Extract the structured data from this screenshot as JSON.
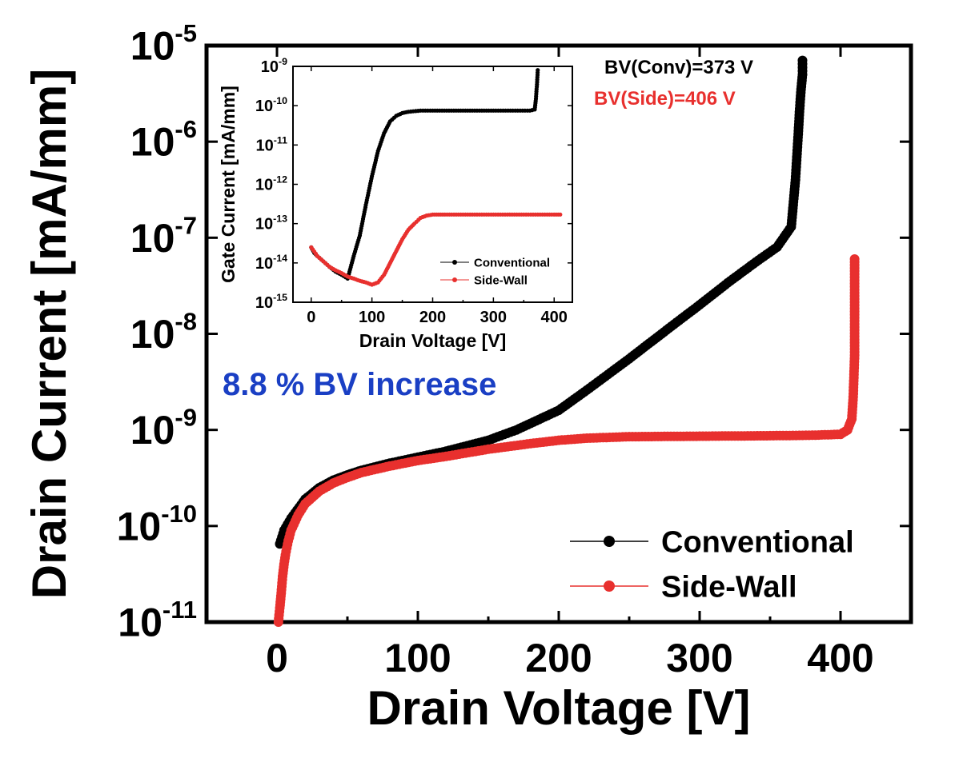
{
  "chart_data": [
    {
      "id": "main",
      "type": "scatter",
      "x_scale": "linear",
      "y_scale": "log",
      "xlabel": "Drain Voltage [V]",
      "ylabel": "Drain Current [mA/mm]",
      "xlim": [
        -50,
        450
      ],
      "ylim": [
        1e-11,
        1e-05
      ],
      "x_ticks": [
        0,
        100,
        200,
        300,
        400
      ],
      "y_tick_exponents": [
        -11,
        -10,
        -9,
        -8,
        -7,
        -6,
        -5
      ],
      "legend_position": "bottom-right",
      "series": [
        {
          "name": "Conventional",
          "color": "#000000",
          "x": [
            2,
            5,
            10,
            20,
            30,
            40,
            50,
            60,
            80,
            100,
            120,
            150,
            170,
            200,
            220,
            250,
            280,
            300,
            320,
            340,
            355,
            365,
            368,
            370,
            371,
            372,
            373,
            373
          ],
          "y": [
            6.5e-11,
            9e-11,
            1.2e-10,
            1.9e-10,
            2.5e-10,
            3e-10,
            3.4e-10,
            3.8e-10,
            4.5e-10,
            5.2e-10,
            6e-10,
            7.8e-10,
            1e-09,
            1.6e-09,
            2.6e-09,
            5.5e-09,
            1.2e-08,
            2e-08,
            3.4e-08,
            5.6e-08,
            8e-08,
            1.3e-07,
            4e-07,
            1.2e-06,
            2.2e-06,
            3.5e-06,
            5e-06,
            7e-06
          ]
        },
        {
          "name": "Side-Wall",
          "color": "#e8302e",
          "x": [
            1,
            2,
            3,
            4,
            5,
            6,
            8,
            10,
            15,
            20,
            30,
            40,
            50,
            60,
            80,
            100,
            120,
            150,
            180,
            200,
            220,
            250,
            300,
            350,
            380,
            400,
            405,
            408,
            409,
            410,
            410,
            410,
            410
          ],
          "y": [
            1e-11,
            1.4e-11,
            2e-11,
            3e-11,
            4e-11,
            5e-11,
            7e-11,
            9e-11,
            1.3e-10,
            1.7e-10,
            2.3e-10,
            2.8e-10,
            3.2e-10,
            3.6e-10,
            4.2e-10,
            4.8e-10,
            5.3e-10,
            6.3e-10,
            7.2e-10,
            7.8e-10,
            8.2e-10,
            8.5e-10,
            8.6e-10,
            8.7e-10,
            8.8e-10,
            9e-10,
            1e-09,
            1.3e-09,
            2.2e-09,
            6e-09,
            2.3e-08,
            4.5e-08,
            6e-08
          ]
        }
      ]
    },
    {
      "id": "inset",
      "type": "line",
      "x_scale": "linear",
      "y_scale": "log",
      "xlabel": "Drain Voltage [V]",
      "ylabel": "Gate Current [mA/mm]",
      "xlim": [
        -30,
        430
      ],
      "ylim": [
        1e-15,
        1e-09
      ],
      "x_ticks": [
        0,
        100,
        200,
        300,
        400
      ],
      "y_tick_exponents": [
        -15,
        -14,
        -13,
        -12,
        -11,
        -10,
        -9
      ],
      "legend_position": "bottom-right",
      "series": [
        {
          "name": "Conventional",
          "color": "#000000",
          "x": [
            0,
            5,
            10,
            20,
            30,
            40,
            50,
            60,
            70,
            80,
            90,
            100,
            110,
            120,
            130,
            140,
            150,
            160,
            180,
            200,
            250,
            300,
            360,
            368,
            370,
            372,
            373
          ],
          "y": [
            2.5e-14,
            1.8e-14,
            1.5e-14,
            1.1e-14,
            8e-15,
            6e-15,
            5e-15,
            4e-15,
            1.5e-14,
            5e-14,
            3e-13,
            1.6e-12,
            7e-12,
            2e-11,
            4e-11,
            5.5e-11,
            6.5e-11,
            7e-11,
            7.5e-11,
            7.5e-11,
            7.5e-11,
            7.5e-11,
            7.5e-11,
            8e-11,
            1.5e-10,
            4e-10,
            8e-10
          ]
        },
        {
          "name": "Side-Wall",
          "color": "#e8302e",
          "x": [
            0,
            10,
            20,
            30,
            40,
            50,
            60,
            70,
            80,
            90,
            100,
            110,
            120,
            130,
            140,
            150,
            160,
            170,
            180,
            190,
            200,
            210,
            220,
            250,
            300,
            350,
            400,
            410
          ],
          "y": [
            2.5e-14,
            1.5e-14,
            1.1e-14,
            8e-15,
            6.5e-15,
            5.5e-15,
            4.5e-15,
            4e-15,
            3.5e-15,
            3.2e-15,
            2.8e-15,
            3.2e-15,
            5e-15,
            1e-14,
            2e-14,
            4e-14,
            7e-14,
            1e-13,
            1.4e-13,
            1.6e-13,
            1.7e-13,
            1.7e-13,
            1.7e-13,
            1.7e-13,
            1.7e-13,
            1.7e-13,
            1.7e-13,
            1.7e-13
          ]
        }
      ]
    }
  ],
  "annotations": {
    "bv_conv": "BV(Conv)=373  V",
    "bv_side": "BV(Side)=406  V",
    "increase": "8.8 % BV increase",
    "bv_conv_color": "#000000",
    "bv_side_color": "#e8302e",
    "increase_color": "#1a3fc4"
  }
}
